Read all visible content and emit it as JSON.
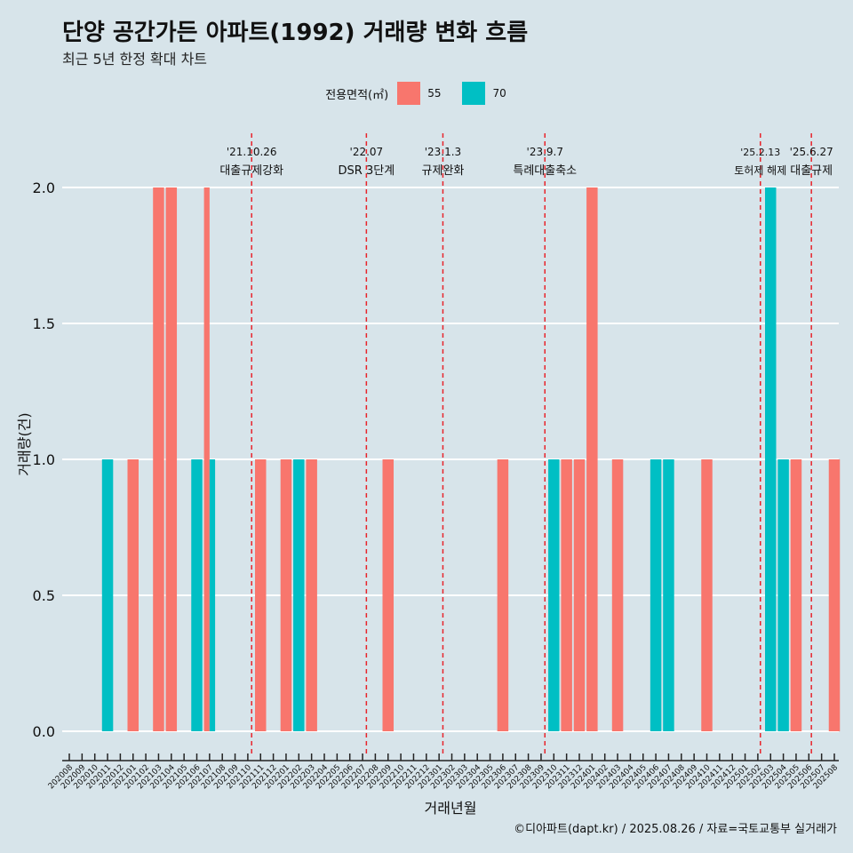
{
  "chart_data": {
    "type": "bar",
    "title": "단양 공간가든 아파트(1992) 거래량 변화 흐름",
    "subtitle": "최근 5년 한정 확대 차트",
    "xlabel": "거래년월",
    "ylabel": "거래량(건)",
    "ylim": [
      0,
      2.2
    ],
    "yticks": [
      "0.0",
      "0.5",
      "1.0",
      "1.5",
      "2.0"
    ],
    "legend": {
      "title": "전용면적(㎡)",
      "position": "top",
      "entries": [
        {
          "name": "55",
          "color": "#f8766d"
        },
        {
          "name": "70",
          "color": "#00bfc4"
        }
      ]
    },
    "categories": [
      "202008",
      "202009",
      "202010",
      "202011",
      "202012",
      "202101",
      "202102",
      "202103",
      "202104",
      "202105",
      "202106",
      "202107",
      "202108",
      "202109",
      "202110",
      "202111",
      "202112",
      "202201",
      "202202",
      "202203",
      "202204",
      "202205",
      "202206",
      "202207",
      "202208",
      "202209",
      "202210",
      "202211",
      "202212",
      "202301",
      "202302",
      "202303",
      "202304",
      "202305",
      "202306",
      "202307",
      "202308",
      "202309",
      "202310",
      "202311",
      "202312",
      "202401",
      "202402",
      "202403",
      "202404",
      "202405",
      "202406",
      "202407",
      "202408",
      "202409",
      "202410",
      "202411",
      "202412",
      "202501",
      "202502",
      "202503",
      "202504",
      "202505",
      "202506",
      "202507",
      "202508"
    ],
    "bars": [
      {
        "month": "202011",
        "series": "70",
        "value": 1,
        "slot": "single"
      },
      {
        "month": "202101",
        "series": "55",
        "value": 1,
        "slot": "single"
      },
      {
        "month": "202103",
        "series": "55",
        "value": 2,
        "slot": "single"
      },
      {
        "month": "202104",
        "series": "55",
        "value": 2,
        "slot": "single"
      },
      {
        "month": "202106",
        "series": "70",
        "value": 1,
        "slot": "single"
      },
      {
        "month": "202107",
        "series": "55",
        "value": 2,
        "slot": "left"
      },
      {
        "month": "202107",
        "series": "70",
        "value": 1,
        "slot": "right"
      },
      {
        "month": "202111",
        "series": "55",
        "value": 1,
        "slot": "single"
      },
      {
        "month": "202201",
        "series": "55",
        "value": 1,
        "slot": "single"
      },
      {
        "month": "202202",
        "series": "70",
        "value": 1,
        "slot": "single"
      },
      {
        "month": "202203",
        "series": "55",
        "value": 1,
        "slot": "single"
      },
      {
        "month": "202209",
        "series": "55",
        "value": 1,
        "slot": "single"
      },
      {
        "month": "202306",
        "series": "55",
        "value": 1,
        "slot": "single"
      },
      {
        "month": "202310",
        "series": "70",
        "value": 1,
        "slot": "single"
      },
      {
        "month": "202311",
        "series": "55",
        "value": 1,
        "slot": "single"
      },
      {
        "month": "202312",
        "series": "55",
        "value": 1,
        "slot": "single"
      },
      {
        "month": "202401",
        "series": "55",
        "value": 2,
        "slot": "single"
      },
      {
        "month": "202403",
        "series": "55",
        "value": 1,
        "slot": "single"
      },
      {
        "month": "202406",
        "series": "70",
        "value": 1,
        "slot": "single"
      },
      {
        "month": "202407",
        "series": "70",
        "value": 1,
        "slot": "single"
      },
      {
        "month": "202410",
        "series": "55",
        "value": 1,
        "slot": "single"
      },
      {
        "month": "202503",
        "series": "70",
        "value": 2,
        "slot": "single"
      },
      {
        "month": "202504",
        "series": "70",
        "value": 1,
        "slot": "single"
      },
      {
        "month": "202505",
        "series": "55",
        "value": 1,
        "slot": "single"
      },
      {
        "month": "202508",
        "series": "55",
        "value": 1,
        "slot": "single"
      }
    ],
    "annotations": [
      {
        "date": "'21.10.26",
        "label": "대출규제강화",
        "pos": 14.3
      },
      {
        "date": "'22.07",
        "label": "DSR 3단계",
        "pos": 23.3
      },
      {
        "date": "'23.1.3",
        "label": "규제완화",
        "pos": 29.3
      },
      {
        "date": "'23.9.7",
        "label": "특례대출축소",
        "pos": 37.3
      },
      {
        "date": "'25.2.13",
        "label": "토허제 해제",
        "pos": 54.2
      },
      {
        "date": "'25.6.27",
        "label": "대출규제",
        "pos": 58.2
      }
    ]
  },
  "caption": "©디아파트(dapt.kr) / 2025.08.26 / 자료=국토교통부 실거래가"
}
